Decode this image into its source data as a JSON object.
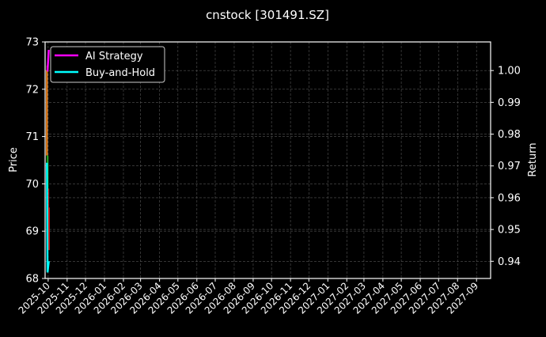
{
  "chart_data": {
    "type": "candlestick+line",
    "title": "cnstock [301491.SZ]",
    "ylabel": "Price",
    "y2label": "Return",
    "ylim": [
      68,
      73
    ],
    "y2lim": [
      0.9346,
      1.009
    ],
    "xlim": [
      "2025-09-26",
      "2027-09-24"
    ],
    "yticks": [
      68,
      69,
      70,
      71,
      72,
      73
    ],
    "y2ticks": [
      "0.94",
      "0.95",
      "0.96",
      "0.97",
      "0.98",
      "0.99",
      "1.00"
    ],
    "xticks": [
      "2025-10",
      "2025-11",
      "2025-12",
      "2026-01",
      "2026-02",
      "2026-03",
      "2026-04",
      "2026-05",
      "2026-06",
      "2026-07",
      "2026-08",
      "2026-09",
      "2026-10",
      "2026-11",
      "2026-12",
      "2027-01",
      "2027-02",
      "2027-03",
      "2027-04",
      "2027-05",
      "2027-06",
      "2027-07",
      "2027-08",
      "2027-09"
    ],
    "grid": true,
    "legend_position": "top-left",
    "candles": [
      {
        "date": "2025-09-29",
        "open": 72.4,
        "high": 72.5,
        "low": 70.6,
        "close": 70.6,
        "color": "#e07b1a"
      },
      {
        "date": "2025-09-30",
        "open": 70.6,
        "high": 70.6,
        "low": 69.9,
        "close": 69.9,
        "color": "#1fa01f"
      },
      {
        "date": "2025-10-02",
        "open": 69.5,
        "high": 69.9,
        "low": 68.6,
        "close": 68.6,
        "color": "#d62020"
      }
    ],
    "series": [
      {
        "name": "AI Strategy",
        "color": "#ff00ff",
        "axis": "right",
        "x": [
          "2025-09-29",
          "2025-09-30",
          "2025-10-02"
        ],
        "y": [
          1.0,
          1.0,
          1.0065
        ]
      },
      {
        "name": "Buy-and-Hold",
        "color": "#00ffff",
        "axis": "right",
        "x": [
          "2025-09-29",
          "2025-09-30",
          "2025-10-02"
        ],
        "y": [
          0.971,
          0.9365,
          0.94
        ]
      }
    ]
  }
}
